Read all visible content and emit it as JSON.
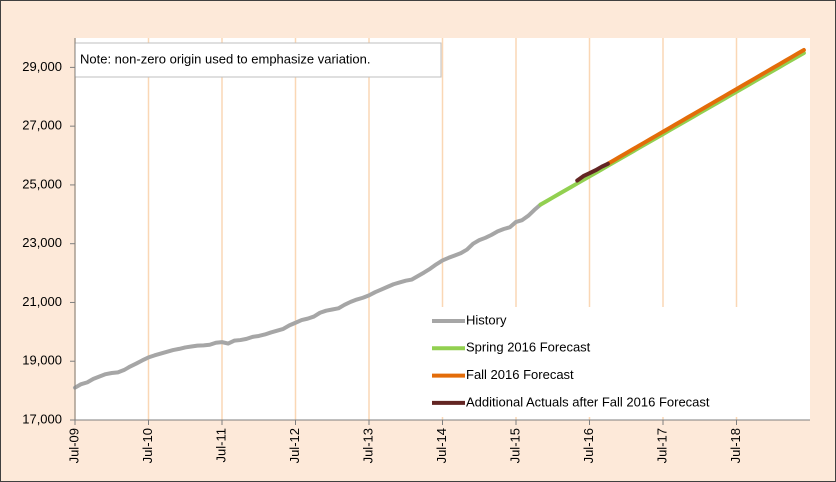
{
  "chart_data": {
    "type": "line",
    "annotation": "Note: non-zero origin used to emphasize variation.",
    "categories": [
      "Jul-09",
      null,
      null,
      null,
      null,
      null,
      null,
      null,
      null,
      null,
      null,
      null,
      "Jul-10",
      null,
      null,
      null,
      null,
      null,
      null,
      null,
      null,
      null,
      null,
      null,
      "Jul-11",
      null,
      null,
      null,
      null,
      null,
      null,
      null,
      null,
      null,
      null,
      null,
      "Jul-12",
      null,
      null,
      null,
      null,
      null,
      null,
      null,
      null,
      null,
      null,
      null,
      "Jul-13",
      null,
      null,
      null,
      null,
      null,
      null,
      null,
      null,
      null,
      null,
      null,
      "Jul-14",
      null,
      null,
      null,
      null,
      null,
      null,
      null,
      null,
      null,
      null,
      null,
      "Jul-15",
      null,
      null,
      null,
      null,
      null,
      null,
      null,
      null,
      null,
      null,
      null,
      "Jul-16",
      null,
      null,
      null,
      null,
      null,
      null,
      null,
      null,
      null,
      null,
      null,
      "Jul-17",
      null,
      null,
      null,
      null,
      null,
      null,
      null,
      null,
      null,
      null,
      null,
      "Jul-18",
      null,
      null,
      null,
      null,
      null,
      null,
      null,
      null,
      null,
      null,
      null
    ],
    "series": [
      {
        "name": "History",
        "color": "#a6a6a6",
        "values": [
          18100,
          18220,
          18280,
          18400,
          18480,
          18560,
          18600,
          18620,
          18700,
          18820,
          18920,
          19030,
          19130,
          19200,
          19260,
          19320,
          19380,
          19420,
          19470,
          19500,
          19530,
          19540,
          19560,
          19630,
          19650,
          19600,
          19700,
          19720,
          19760,
          19830,
          19860,
          19910,
          19980,
          20040,
          20100,
          20220,
          20310,
          20400,
          20450,
          20520,
          20650,
          20720,
          20760,
          20800,
          20920,
          21020,
          21100,
          21160,
          21240,
          21350,
          21440,
          21530,
          21620,
          21680,
          21740,
          21780,
          21900,
          22020,
          22150,
          22300,
          22430,
          22520,
          22600,
          22680,
          22800,
          23000,
          23120,
          23200,
          23300,
          23420,
          23500,
          23560,
          23740,
          23800,
          23950,
          24150,
          24330,
          null,
          null,
          null,
          null,
          null,
          null,
          null,
          null,
          null,
          null,
          null,
          null,
          null,
          null,
          null,
          null,
          null,
          null,
          null,
          null,
          null,
          null,
          null,
          null,
          null,
          null,
          null,
          null,
          null,
          null,
          null,
          null,
          null,
          null,
          null,
          null,
          null,
          null,
          null,
          null,
          null,
          null,
          null
        ]
      },
      {
        "name": "Spring 2016 Forecast",
        "color": "#92d050",
        "values": [
          null,
          null,
          null,
          null,
          null,
          null,
          null,
          null,
          null,
          null,
          null,
          null,
          null,
          null,
          null,
          null,
          null,
          null,
          null,
          null,
          null,
          null,
          null,
          null,
          null,
          null,
          null,
          null,
          null,
          null,
          null,
          null,
          null,
          null,
          null,
          null,
          null,
          null,
          null,
          null,
          null,
          null,
          null,
          null,
          null,
          null,
          null,
          null,
          null,
          null,
          null,
          null,
          null,
          null,
          null,
          null,
          null,
          null,
          null,
          null,
          null,
          null,
          null,
          null,
          null,
          null,
          null,
          null,
          null,
          null,
          null,
          null,
          null,
          null,
          null,
          null,
          24330,
          24450,
          24570,
          24690,
          24810,
          24930,
          25050,
          25170,
          25290,
          25410,
          25530,
          25650,
          25770,
          25890,
          26010,
          26130,
          26250,
          26370,
          26490,
          26610,
          26730,
          26850,
          26970,
          27090,
          27210,
          27330,
          27450,
          27570,
          27690,
          27810,
          27930,
          28050,
          28170,
          28290,
          28410,
          28530,
          28650,
          28770,
          28890,
          29010,
          29130,
          29250,
          29370,
          29490
        ]
      },
      {
        "name": "Fall 2016 Forecast",
        "color": "#e36c09",
        "values": [
          null,
          null,
          null,
          null,
          null,
          null,
          null,
          null,
          null,
          null,
          null,
          null,
          null,
          null,
          null,
          null,
          null,
          null,
          null,
          null,
          null,
          null,
          null,
          null,
          null,
          null,
          null,
          null,
          null,
          null,
          null,
          null,
          null,
          null,
          null,
          null,
          null,
          null,
          null,
          null,
          null,
          null,
          null,
          null,
          null,
          null,
          null,
          null,
          null,
          null,
          null,
          null,
          null,
          null,
          null,
          null,
          null,
          null,
          null,
          null,
          null,
          null,
          null,
          null,
          null,
          null,
          null,
          null,
          null,
          null,
          null,
          null,
          null,
          null,
          null,
          null,
          null,
          null,
          null,
          null,
          null,
          null,
          null,
          null,
          null,
          null,
          null,
          25720,
          25841,
          25962,
          26083,
          26204,
          26325,
          26446,
          26567,
          26688,
          26809,
          26930,
          27051,
          27172,
          27293,
          27414,
          27535,
          27656,
          27777,
          27898,
          28019,
          28140,
          28261,
          28382,
          28503,
          28624,
          28745,
          28866,
          28987,
          29108,
          29229,
          29350,
          29471,
          29592
        ]
      },
      {
        "name": "Additional Actuals after Fall 2016 Forecast",
        "color": "#632523",
        "values": [
          null,
          null,
          null,
          null,
          null,
          null,
          null,
          null,
          null,
          null,
          null,
          null,
          null,
          null,
          null,
          null,
          null,
          null,
          null,
          null,
          null,
          null,
          null,
          null,
          null,
          null,
          null,
          null,
          null,
          null,
          null,
          null,
          null,
          null,
          null,
          null,
          null,
          null,
          null,
          null,
          null,
          null,
          null,
          null,
          null,
          null,
          null,
          null,
          null,
          null,
          null,
          null,
          null,
          null,
          null,
          null,
          null,
          null,
          null,
          null,
          null,
          null,
          null,
          null,
          null,
          null,
          null,
          null,
          null,
          null,
          null,
          null,
          null,
          null,
          null,
          null,
          null,
          null,
          null,
          null,
          null,
          null,
          25150,
          25300,
          25400,
          25500,
          25620,
          25720,
          null,
          null,
          null,
          null,
          null,
          null,
          null,
          null,
          null,
          null,
          null,
          null,
          null,
          null,
          null,
          null,
          null,
          null,
          null,
          null,
          null,
          null,
          null,
          null,
          null,
          null,
          null,
          null,
          null,
          null,
          null,
          null
        ]
      }
    ],
    "ylim": [
      17000,
      30000
    ],
    "yticks": [
      {
        "value": 17000,
        "label": "17,000"
      },
      {
        "value": 19000,
        "label": "19,000"
      },
      {
        "value": 21000,
        "label": "21,000"
      },
      {
        "value": 23000,
        "label": "23,000"
      },
      {
        "value": 25000,
        "label": "25,000"
      },
      {
        "value": 27000,
        "label": "27,000"
      },
      {
        "value": 29000,
        "label": "29,000"
      }
    ],
    "grid": true
  }
}
